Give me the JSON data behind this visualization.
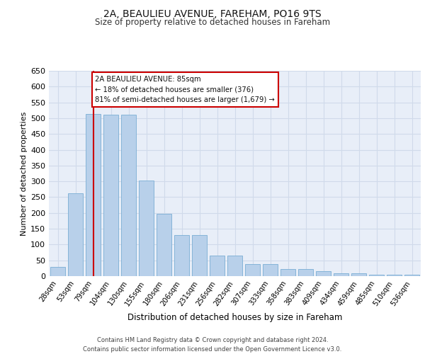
{
  "title_line1": "2A, BEAULIEU AVENUE, FAREHAM, PO16 9TS",
  "title_line2": "Size of property relative to detached houses in Fareham",
  "xlabel": "Distribution of detached houses by size in Fareham",
  "ylabel": "Number of detached properties",
  "footer_line1": "Contains HM Land Registry data © Crown copyright and database right 2024.",
  "footer_line2": "Contains public sector information licensed under the Open Government Licence v3.0.",
  "categories": [
    "28sqm",
    "53sqm",
    "79sqm",
    "104sqm",
    "130sqm",
    "155sqm",
    "180sqm",
    "206sqm",
    "231sqm",
    "256sqm",
    "282sqm",
    "307sqm",
    "333sqm",
    "358sqm",
    "383sqm",
    "409sqm",
    "434sqm",
    "459sqm",
    "485sqm",
    "510sqm",
    "536sqm"
  ],
  "values": [
    30,
    262,
    513,
    512,
    510,
    303,
    198,
    130,
    130,
    65,
    65,
    38,
    38,
    22,
    22,
    15,
    10,
    8,
    5,
    5,
    5
  ],
  "bar_color": "#b8d0ea",
  "bar_edge_color": "#7aaed4",
  "grid_color": "#d0daea",
  "background_color": "#e8eef8",
  "annotation_box_text": "2A BEAULIEU AVENUE: 85sqm\n← 18% of detached houses are smaller (376)\n81% of semi-detached houses are larger (1,679) →",
  "annotation_box_color": "#ffffff",
  "annotation_box_edge_color": "#cc0000",
  "property_line_x": 2,
  "property_line_color": "#cc0000",
  "ylim": [
    0,
    650
  ],
  "ytick_interval": 50
}
